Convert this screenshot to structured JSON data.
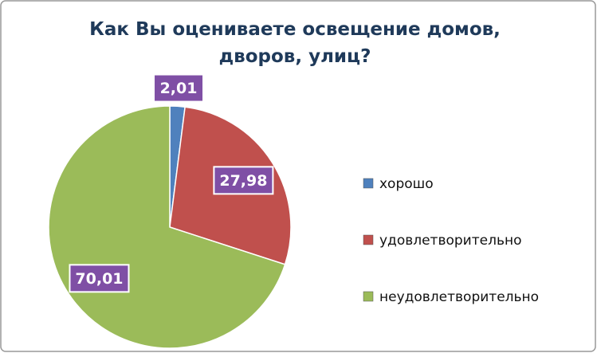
{
  "chart_data": {
    "type": "pie",
    "title": "Как Вы оцениваете освещение домов, дворов, улиц?",
    "categories": [
      "хорошо",
      "удовлетворительно",
      "неудовлетворительно"
    ],
    "values": [
      2.01,
      27.98,
      70.01
    ],
    "value_labels": [
      "2,01",
      "27,98",
      "70,01"
    ],
    "colors": [
      "#4f81bd",
      "#c0504d",
      "#9bbb59"
    ],
    "legend": "right"
  }
}
